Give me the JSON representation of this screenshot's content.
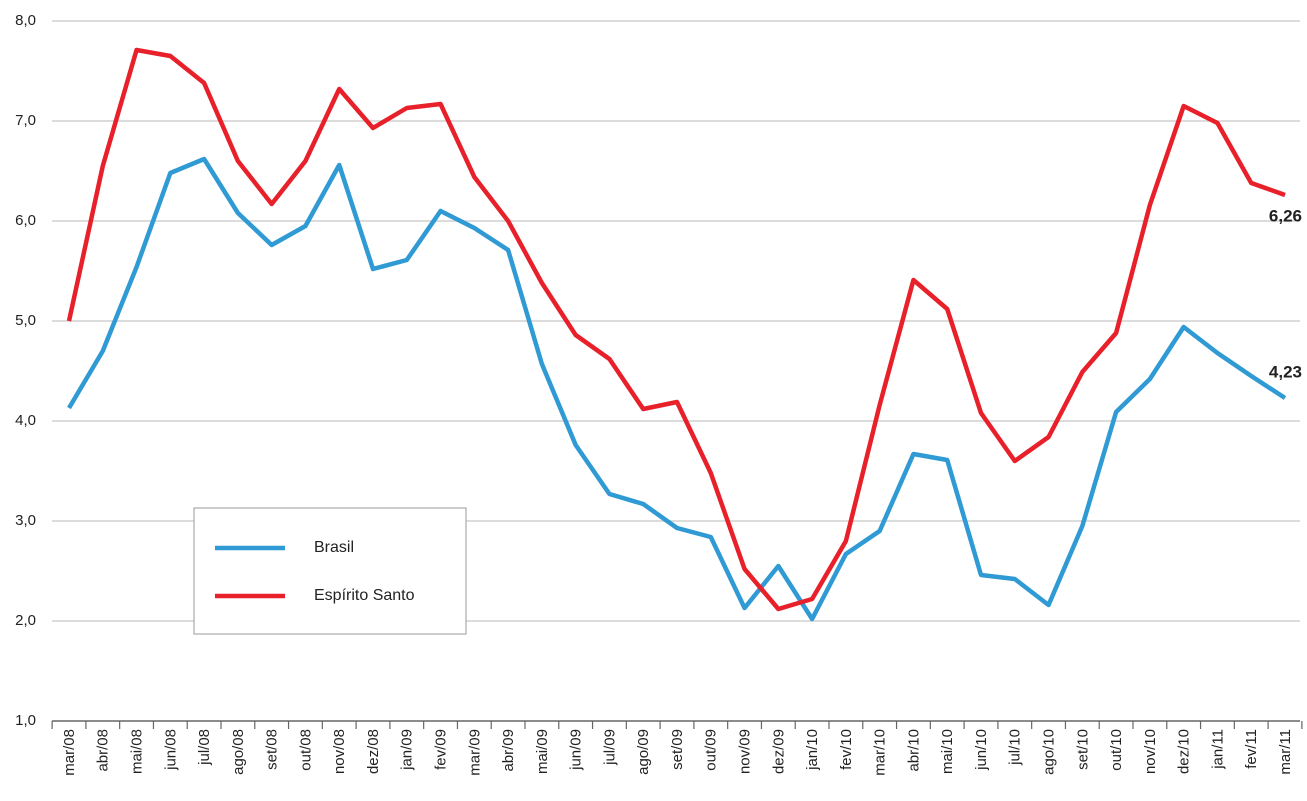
{
  "chart_data": {
    "type": "line",
    "categories": [
      "mar/08",
      "abr/08",
      "mai/08",
      "jun/08",
      "jul/08",
      "ago/08",
      "set/08",
      "out/08",
      "nov/08",
      "dez/08",
      "jan/09",
      "fev/09",
      "mar/09",
      "abr/09",
      "mai/09",
      "jun/09",
      "jul/09",
      "ago/09",
      "set/09",
      "out/09",
      "nov/09",
      "dez/09",
      "jan/10",
      "fev/10",
      "mar/10",
      "abr/10",
      "mai/10",
      "jun/10",
      "jul/10",
      "ago/10",
      "set/10",
      "out/10",
      "nov/10",
      "dez/10",
      "jan/11",
      "fev/11",
      "mar/11"
    ],
    "series": [
      {
        "name": "Brasil",
        "color": "#2f9ad4",
        "values": [
          4.13,
          4.7,
          5.54,
          6.48,
          6.62,
          6.08,
          5.76,
          5.95,
          6.56,
          5.52,
          5.61,
          6.1,
          5.93,
          5.71,
          4.57,
          3.76,
          3.27,
          3.17,
          2.93,
          2.84,
          2.13,
          2.55,
          2.02,
          2.67,
          2.9,
          3.67,
          3.61,
          2.46,
          2.42,
          2.16,
          2.95,
          4.09,
          4.42,
          4.94,
          4.68,
          4.45,
          4.23
        ],
        "value_labels": [
          null,
          null,
          null,
          null,
          null,
          null,
          null,
          null,
          null,
          null,
          null,
          null,
          null,
          null,
          null,
          null,
          null,
          null,
          null,
          null,
          null,
          null,
          null,
          null,
          null,
          null,
          null,
          null,
          null,
          null,
          null,
          null,
          null,
          null,
          null,
          null,
          "4,23"
        ]
      },
      {
        "name": "Espírito Santo",
        "color": "#e8202a",
        "values": [
          5.0,
          6.55,
          7.71,
          7.65,
          7.38,
          6.6,
          6.17,
          6.6,
          7.32,
          6.93,
          7.13,
          7.17,
          6.44,
          6.0,
          5.38,
          4.86,
          4.62,
          4.12,
          4.19,
          3.48,
          2.52,
          2.12,
          2.22,
          2.8,
          4.16,
          5.41,
          5.12,
          4.08,
          3.6,
          3.84,
          4.49,
          4.88,
          6.16,
          7.15,
          6.98,
          6.38,
          6.26
        ],
        "value_labels": [
          null,
          null,
          null,
          null,
          null,
          null,
          null,
          null,
          null,
          null,
          null,
          null,
          null,
          null,
          null,
          null,
          null,
          null,
          null,
          null,
          null,
          null,
          null,
          null,
          null,
          null,
          null,
          null,
          null,
          null,
          null,
          null,
          null,
          null,
          null,
          null,
          "6,26"
        ]
      }
    ],
    "ylim": [
      1,
      8
    ],
    "yticks": [
      {
        "value": 1,
        "label": "1,0"
      },
      {
        "value": 2,
        "label": "2,0"
      },
      {
        "value": 3,
        "label": "3,0"
      },
      {
        "value": 4,
        "label": "4,0"
      },
      {
        "value": 5,
        "label": "5,0"
      },
      {
        "value": 6,
        "label": "6,0"
      },
      {
        "value": 7,
        "label": "7,0"
      },
      {
        "value": 8,
        "label": "8,0"
      }
    ],
    "grid": true
  }
}
